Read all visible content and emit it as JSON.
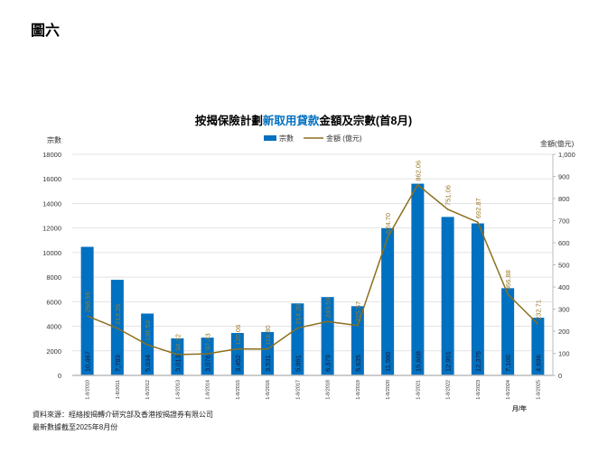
{
  "figure_label": "圖六",
  "source_note": "資料來源：經絡按揭轉介研究部及香港按揭證券有限公司",
  "update_note": "最新數據截至2025年8月份",
  "chart_data": {
    "type": "bar+line",
    "title_parts": [
      "按揭保險計劃",
      "新取用貸款",
      "金額及宗數(首8月)"
    ],
    "left_axis_label": "宗數",
    "right_axis_label": "金額(億元)",
    "x_axis_label": "月/年",
    "categories": [
      "1-8/2010",
      "1-8/2011",
      "1-8/2012",
      "1-8/2013",
      "1-8/2014",
      "1-8/2015",
      "1-8/2016",
      "1-8/2017",
      "1-8/2018",
      "1-8/2019",
      "1-8/2020",
      "1-8/2021",
      "1-8/2022",
      "1-8/2023",
      "1-8/2024",
      "1-8/2025"
    ],
    "series": [
      {
        "name": "宗數",
        "type": "bar",
        "axis": "left",
        "color": "#0070C0",
        "values": [
          10467,
          7783,
          5034,
          3013,
          3076,
          3452,
          3531,
          5861,
          6379,
          5635,
          11980,
          15608,
          12901,
          12375,
          7100,
          4696
        ],
        "labels": [
          "10,467",
          "7,783",
          "5,034",
          "3,013",
          "3,076",
          "3,452",
          "3,531",
          "5,861",
          "6,379",
          "5,635",
          "11,980",
          "15,608",
          "12,901",
          "12,375",
          "7,100",
          "4,696"
        ]
      },
      {
        "name": "金額 (億元)",
        "type": "line",
        "axis": "right",
        "color": "#8B6F1E",
        "values": [
          268.56,
          213.26,
          138.53,
          94.32,
          97.43,
          120.06,
          118.8,
          214.2,
          243.59,
          225.57,
          624.7,
          862.06,
          751.06,
          692.87,
          366.88,
          232.71
        ],
        "labels": [
          "268.56",
          "213.26",
          "138.53",
          "94.32",
          "97.43",
          "120.06",
          "118.80",
          "214.20",
          "243.59",
          "225.57",
          "624.70",
          "862.06",
          "751.06",
          "692.87",
          "366.88",
          "232.71"
        ]
      }
    ],
    "left_ylim": [
      0,
      18000
    ],
    "left_ticks": [
      "0",
      "2000",
      "4000",
      "6000",
      "8000",
      "10000",
      "12000",
      "14000",
      "16000",
      "18000"
    ],
    "right_ylim": [
      0,
      1000
    ],
    "right_ticks": [
      "0",
      "100",
      "200",
      "300",
      "400",
      "500",
      "600",
      "700",
      "800",
      "900",
      "1,000"
    ],
    "grid": true,
    "legend_position": "top-center"
  }
}
